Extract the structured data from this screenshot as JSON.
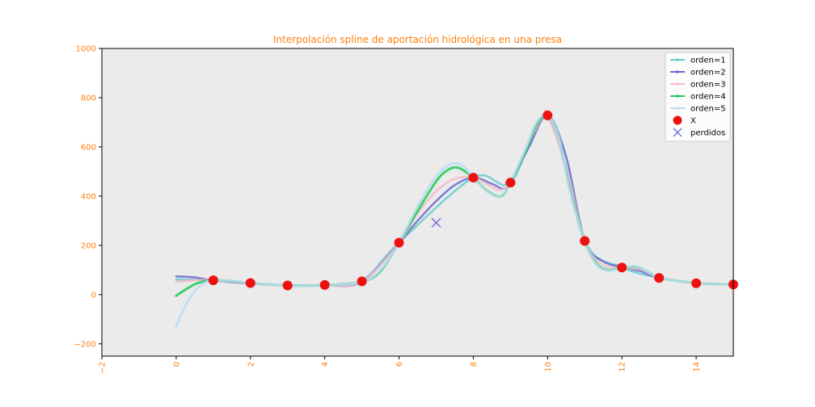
{
  "chart_data": {
    "type": "line",
    "title": "Interpolación spline de aportación hidrológica en una presa",
    "xlabel": "",
    "ylabel": "",
    "xlim": [
      -2,
      15
    ],
    "ylim": [
      -250,
      1000
    ],
    "xticks": [
      -2,
      0,
      2,
      4,
      6,
      8,
      10,
      12,
      14
    ],
    "yticks": [
      -200,
      0,
      200,
      400,
      600,
      800,
      1000
    ],
    "grid": false,
    "legend_position": "top-right",
    "colors": {
      "tick_text": "#ff7f0e",
      "title_text": "#ff7f0e",
      "axes_background": "#ebebeb"
    },
    "series": [
      {
        "name": "orden=1",
        "color": "#66cccc",
        "line_width": 2.5,
        "points": [
          [
            0,
            62
          ],
          [
            1,
            58
          ],
          [
            2,
            47
          ],
          [
            3,
            38
          ],
          [
            4,
            40
          ],
          [
            5,
            57
          ],
          [
            6,
            211
          ],
          [
            8,
            475
          ],
          [
            9,
            455
          ],
          [
            10,
            728
          ],
          [
            11,
            218
          ],
          [
            12,
            112
          ],
          [
            13,
            68
          ],
          [
            14,
            47
          ],
          [
            15,
            41
          ]
        ]
      },
      {
        "name": "orden=2",
        "color": "#6a6ad4",
        "line_width": 2.5,
        "points": [
          [
            0,
            74
          ],
          [
            0.5,
            70
          ],
          [
            1,
            58
          ],
          [
            2,
            45
          ],
          [
            3,
            38
          ],
          [
            4,
            38
          ],
          [
            5,
            52
          ],
          [
            6,
            211
          ],
          [
            6.5,
            300
          ],
          [
            7,
            380
          ],
          [
            7.5,
            445
          ],
          [
            8,
            475
          ],
          [
            8.5,
            450
          ],
          [
            8.8,
            430
          ],
          [
            9,
            455
          ],
          [
            9.5,
            600
          ],
          [
            10,
            728
          ],
          [
            10.5,
            560
          ],
          [
            11,
            218
          ],
          [
            11.5,
            135
          ],
          [
            12,
            112
          ],
          [
            12.5,
            95
          ],
          [
            13,
            68
          ],
          [
            14,
            47
          ],
          [
            15,
            41
          ]
        ]
      },
      {
        "name": "orden=3",
        "color": "#f4b8c8",
        "line_width": 2.5,
        "points": [
          [
            0,
            52
          ],
          [
            0.5,
            58
          ],
          [
            1,
            58
          ],
          [
            2,
            46
          ],
          [
            3,
            37
          ],
          [
            4,
            38
          ],
          [
            5,
            53
          ],
          [
            6,
            211
          ],
          [
            6.5,
            330
          ],
          [
            7,
            420
          ],
          [
            7.5,
            470
          ],
          [
            8,
            475
          ],
          [
            8.5,
            438
          ],
          [
            8.7,
            425
          ],
          [
            9,
            455
          ],
          [
            9.5,
            620
          ],
          [
            9.9,
            730
          ],
          [
            10,
            728
          ],
          [
            10.5,
            520
          ],
          [
            11,
            218
          ],
          [
            11.5,
            120
          ],
          [
            12,
            108
          ],
          [
            12.5,
            102
          ],
          [
            13,
            70
          ],
          [
            14,
            46
          ],
          [
            15,
            41
          ]
        ]
      },
      {
        "name": "orden=4",
        "color": "#22cc55",
        "line_width": 3,
        "points": [
          [
            0,
            -5
          ],
          [
            0.3,
            25
          ],
          [
            0.6,
            48
          ],
          [
            1,
            58
          ],
          [
            1.5,
            55
          ],
          [
            2,
            46
          ],
          [
            3,
            37
          ],
          [
            4,
            38
          ],
          [
            5,
            52
          ],
          [
            5.5,
            95
          ],
          [
            6,
            211
          ],
          [
            6.5,
            340
          ],
          [
            7,
            460
          ],
          [
            7.3,
            505
          ],
          [
            7.6,
            515
          ],
          [
            8,
            475
          ],
          [
            8.3,
            430
          ],
          [
            8.6,
            402
          ],
          [
            8.8,
            405
          ],
          [
            9,
            455
          ],
          [
            9.4,
            580
          ],
          [
            9.7,
            690
          ],
          [
            10,
            728
          ],
          [
            10.3,
            640
          ],
          [
            10.6,
            430
          ],
          [
            11,
            218
          ],
          [
            11.3,
            130
          ],
          [
            11.6,
            100
          ],
          [
            12,
            108
          ],
          [
            12.4,
            112
          ],
          [
            12.8,
            85
          ],
          [
            13,
            68
          ],
          [
            14,
            47
          ],
          [
            15,
            41
          ]
        ]
      },
      {
        "name": "orden=5",
        "color": "#bcdcf4",
        "line_width": 3,
        "points": [
          [
            0,
            -130
          ],
          [
            0.2,
            -60
          ],
          [
            0.5,
            15
          ],
          [
            0.8,
            50
          ],
          [
            1,
            58
          ],
          [
            1.5,
            56
          ],
          [
            2,
            46
          ],
          [
            3,
            37
          ],
          [
            4,
            38
          ],
          [
            5,
            52
          ],
          [
            5.5,
            100
          ],
          [
            6,
            211
          ],
          [
            6.5,
            360
          ],
          [
            7,
            480
          ],
          [
            7.4,
            530
          ],
          [
            7.7,
            525
          ],
          [
            8,
            475
          ],
          [
            8.3,
            428
          ],
          [
            8.6,
            400
          ],
          [
            8.8,
            408
          ],
          [
            9,
            455
          ],
          [
            9.4,
            590
          ],
          [
            9.7,
            700
          ],
          [
            10,
            728
          ],
          [
            10.3,
            640
          ],
          [
            10.6,
            420
          ],
          [
            11,
            218
          ],
          [
            11.3,
            125
          ],
          [
            11.6,
            98
          ],
          [
            12,
            108
          ],
          [
            12.4,
            114
          ],
          [
            12.8,
            85
          ],
          [
            13,
            68
          ],
          [
            14,
            47
          ],
          [
            15,
            41
          ]
        ]
      }
    ],
    "scatter_series": [
      {
        "name": "X",
        "marker": "circle",
        "color": "#ee1111",
        "points": [
          [
            1,
            58
          ],
          [
            2,
            47
          ],
          [
            3,
            37
          ],
          [
            4,
            39
          ],
          [
            5,
            54
          ],
          [
            6,
            211
          ],
          [
            8,
            475
          ],
          [
            9,
            455
          ],
          [
            10,
            728
          ],
          [
            11,
            218
          ],
          [
            12,
            110
          ],
          [
            13,
            68
          ],
          [
            14,
            46
          ],
          [
            15,
            41
          ]
        ]
      },
      {
        "name": "perdidos",
        "marker": "x",
        "color": "#7777e0",
        "points": [
          [
            7,
            292
          ]
        ]
      }
    ]
  }
}
